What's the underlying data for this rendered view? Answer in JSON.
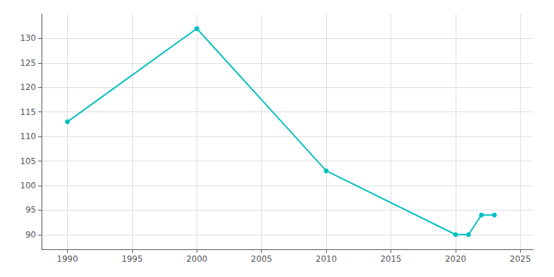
{
  "chart_data": {
    "type": "line",
    "x": [
      1990,
      2000,
      2010,
      2020,
      2021,
      2022,
      2023
    ],
    "values": [
      113,
      132,
      103,
      90,
      90,
      94,
      94
    ],
    "color": "#00BFBF",
    "marker": "circle",
    "xlim": [
      1988,
      2026
    ],
    "ylim": [
      87,
      135
    ],
    "xticks": [
      1990,
      1995,
      2000,
      2005,
      2010,
      2015,
      2020,
      2025
    ],
    "yticks": [
      90,
      95,
      100,
      105,
      110,
      115,
      120,
      125,
      130
    ],
    "grid": true
  }
}
